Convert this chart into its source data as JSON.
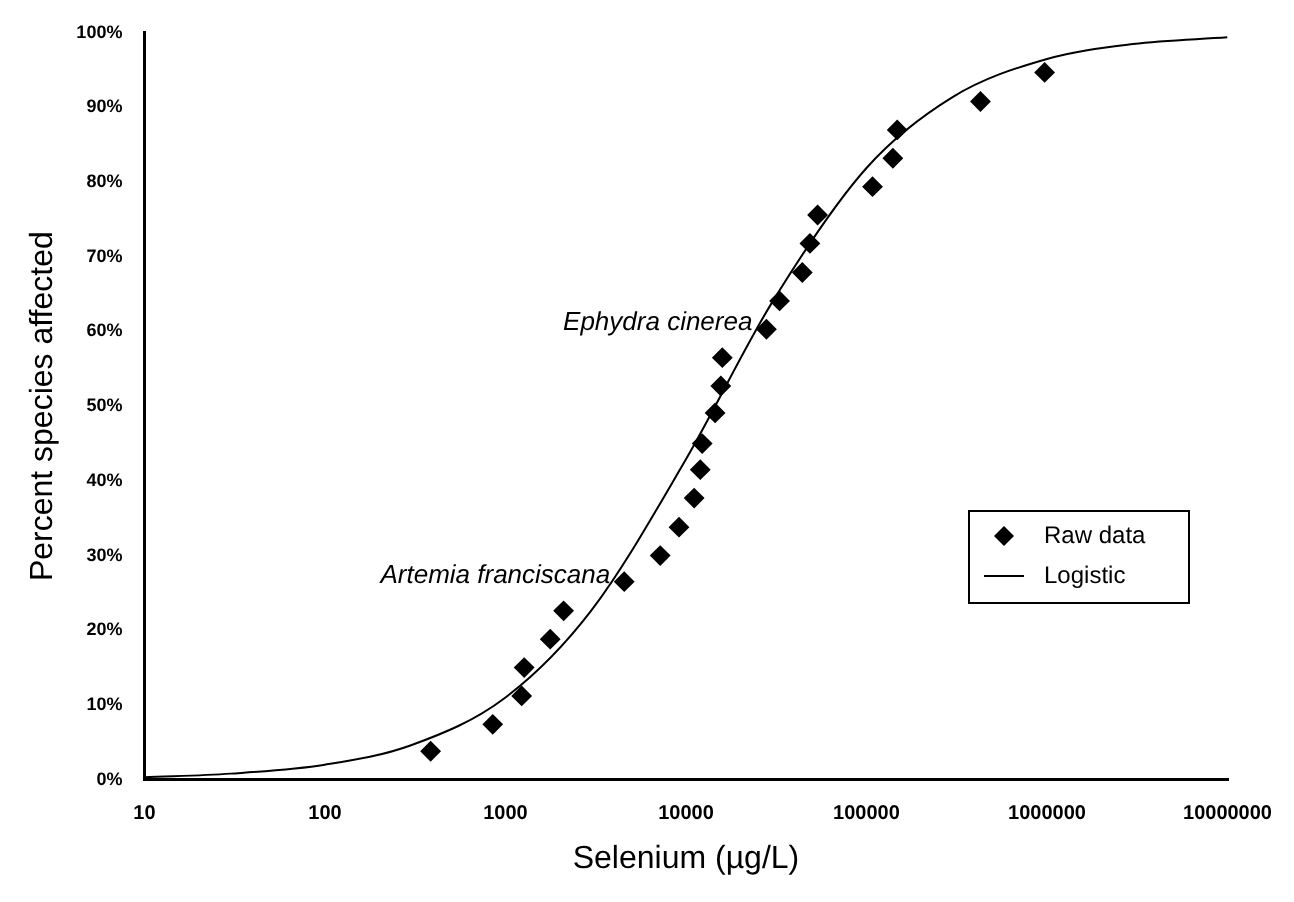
{
  "chart_data": {
    "type": "scatter",
    "xlabel": "Selenium (µg/L)",
    "ylabel": "Percent species affected",
    "log": "x",
    "xlim": [
      10,
      10000000
    ],
    "xticks": [
      10,
      100,
      1000,
      10000,
      100000,
      1000000,
      10000000
    ],
    "ylim": [
      0,
      100
    ],
    "yticks": [
      {
        "value": 0,
        "label": "0%"
      },
      {
        "value": 10,
        "label": "10%"
      },
      {
        "value": 20,
        "label": "20%"
      },
      {
        "value": 30,
        "label": "30%"
      },
      {
        "value": 40,
        "label": "40%"
      },
      {
        "value": 50,
        "label": "50%"
      },
      {
        "value": 60,
        "label": "60%"
      },
      {
        "value": 70,
        "label": "70%"
      },
      {
        "value": 80,
        "label": "80%"
      },
      {
        "value": 90,
        "label": "90%"
      },
      {
        "value": 100,
        "label": "100%"
      }
    ],
    "grid": false,
    "legend": "right",
    "series": [
      {
        "name": "Raw data",
        "type": "scatter",
        "marker": "diamond",
        "color": "#000000",
        "x": [
          385,
          850,
          1230,
          1270,
          1770,
          2100,
          4550,
          7200,
          9150,
          11100,
          12000,
          12300,
          14500,
          15600,
          15900,
          27900,
          33000,
          44100,
          48600,
          53600,
          108000,
          140000,
          148000,
          428000,
          970000
        ],
        "values": [
          3.8,
          7.4,
          11.2,
          15,
          18.8,
          22.6,
          26.5,
          30,
          33.8,
          37.7,
          41.5,
          45,
          49.1,
          52.7,
          56.5,
          60.3,
          64.1,
          67.9,
          71.8,
          75.6,
          79.4,
          83.2,
          87,
          90.8,
          94.7
        ]
      },
      {
        "name": "Logistic",
        "type": "line",
        "marker": "none",
        "color": "#000000",
        "x": [
          10,
          30,
          100,
          300,
          1000,
          3000,
          10000,
          30000,
          100000,
          300000,
          1000000,
          3000000,
          10000000
        ],
        "values": [
          0.3,
          0.8,
          2,
          4.6,
          11,
          22.7,
          42.9,
          63.9,
          81.9,
          91.4,
          96.5,
          98.5,
          99.4
        ]
      }
    ],
    "annotations": [
      {
        "text": "Artemia franciscana",
        "x": 4550,
        "y": 26.5
      },
      {
        "text": "Ephydra cinerea",
        "x": 27900,
        "y": 60.3
      }
    ]
  }
}
